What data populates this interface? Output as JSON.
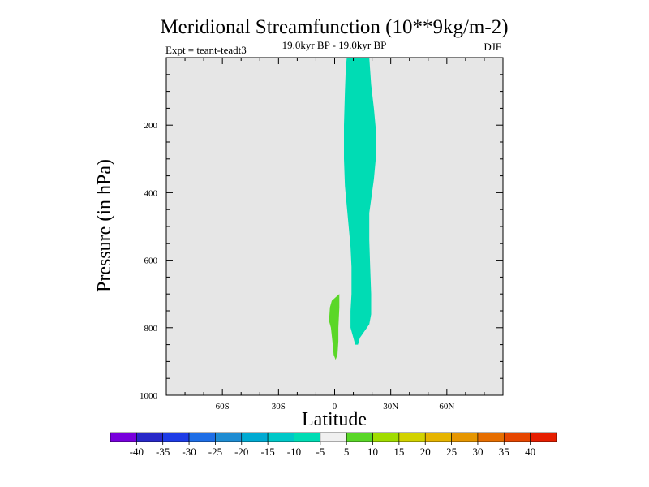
{
  "chart_data": {
    "type": "contour",
    "title": "Meridional Streamfunction (10**9kg/m-2)",
    "subtitle": "19.0kyr BP - 19.0kyr BP",
    "left_label": "Expt = teant-teadt3",
    "right_label": "DJF",
    "xlabel": "Latitude",
    "ylabel": "Pressure (in hPa)",
    "xlim": [
      -90,
      90
    ],
    "ylim": [
      1000,
      0
    ],
    "y_reversed": true,
    "x_ticks": [
      {
        "value": -60,
        "label": "60S"
      },
      {
        "value": -30,
        "label": "30S"
      },
      {
        "value": 0,
        "label": "0"
      },
      {
        "value": 30,
        "label": "30N"
      },
      {
        "value": 60,
        "label": "60N"
      }
    ],
    "y_ticks": [
      {
        "value": 200,
        "label": "200"
      },
      {
        "value": 400,
        "label": "400"
      },
      {
        "value": 600,
        "label": "600"
      },
      {
        "value": 800,
        "label": "800"
      },
      {
        "value": 1000,
        "label": "1000"
      }
    ],
    "background_color": "#e6e6e6",
    "regions": [
      {
        "name": "negative-cell",
        "level_range": [
          -10,
          -5
        ],
        "color": "#00dcb4",
        "outline": [
          [
            6.5,
            0
          ],
          [
            18.5,
            0
          ],
          [
            19.5,
            80
          ],
          [
            21,
            150
          ],
          [
            22,
            210
          ],
          [
            22,
            300
          ],
          [
            21,
            360
          ],
          [
            19.5,
            420
          ],
          [
            18.5,
            460
          ],
          [
            18.5,
            540
          ],
          [
            19,
            620
          ],
          [
            19.5,
            700
          ],
          [
            19.5,
            760
          ],
          [
            18.5,
            790
          ],
          [
            16,
            810
          ],
          [
            13.5,
            830
          ],
          [
            12.5,
            850
          ],
          [
            11,
            850
          ],
          [
            10,
            830
          ],
          [
            8.5,
            800
          ],
          [
            8.5,
            750
          ],
          [
            9,
            700
          ],
          [
            9,
            620
          ],
          [
            8.5,
            560
          ],
          [
            7.5,
            500
          ],
          [
            6.5,
            440
          ],
          [
            5.5,
            380
          ],
          [
            5,
            300
          ],
          [
            5,
            200
          ],
          [
            5.5,
            100
          ],
          [
            6,
            30
          ]
        ]
      },
      {
        "name": "positive-cell",
        "level_range": [
          5,
          10
        ],
        "color": "#5ad728",
        "outline": [
          [
            1.5,
            705
          ],
          [
            2.5,
            700
          ],
          [
            2.5,
            740
          ],
          [
            2,
            800
          ],
          [
            2,
            840
          ],
          [
            1.5,
            880
          ],
          [
            0.5,
            895
          ],
          [
            -0.5,
            880
          ],
          [
            -1,
            850
          ],
          [
            -2,
            800
          ],
          [
            -3,
            780
          ],
          [
            -2.5,
            740
          ],
          [
            -1.5,
            720
          ]
        ]
      }
    ],
    "colorbar": {
      "levels": [
        "-40",
        "-35",
        "-30",
        "-25",
        "-20",
        "-15",
        "-10",
        "-5",
        "5",
        "10",
        "15",
        "20",
        "25",
        "30",
        "35",
        "40"
      ],
      "colors": [
        "#7800dc",
        "#2828c8",
        "#1e3ce6",
        "#1e6ee6",
        "#1e8cd2",
        "#00aad2",
        "#00c8c8",
        "#00dcb4",
        "#f0f0f0",
        "#5ad728",
        "#a0dc00",
        "#d2d200",
        "#e6b400",
        "#e69600",
        "#e66e00",
        "#e64600",
        "#e61e00"
      ]
    }
  }
}
